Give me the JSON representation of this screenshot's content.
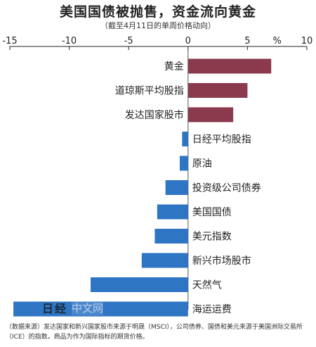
{
  "header": {
    "title": "美国国债被抛售，资金流向黄金",
    "subtitle": "（截至4月11日的单周价格动向）"
  },
  "chart_data": {
    "type": "bar",
    "orientation": "horizontal",
    "unit": "%",
    "xlim": [
      -15,
      10
    ],
    "ticks": [
      "-15",
      "-10",
      "-5",
      "0",
      "5",
      "%",
      "10"
    ],
    "categories": [
      "黄金",
      "道琼斯平均股指",
      "发达国家股市",
      "日经平均股指",
      "原油",
      "投资级公司债券",
      "美国国债",
      "美元指数",
      "新兴市场股市",
      "天然气",
      "海运运费"
    ],
    "values": [
      7.0,
      5.0,
      3.8,
      -0.5,
      -0.7,
      -1.9,
      -2.6,
      -2.8,
      -3.9,
      -8.2,
      -14.7
    ],
    "colors": {
      "positive": "#8b3a4e",
      "negative": "#2e75c3"
    },
    "grid": false,
    "legend": "none"
  },
  "footnote": "（数据来源）发达国家和新兴国家股市来源于明晟（MSCI），公司债券、国债和美元来源于美国洲际交易所（ICE）的指数。商品为作为国际指标的期货价格。",
  "watermark": {
    "logo": "日经",
    "text": "中文网"
  }
}
